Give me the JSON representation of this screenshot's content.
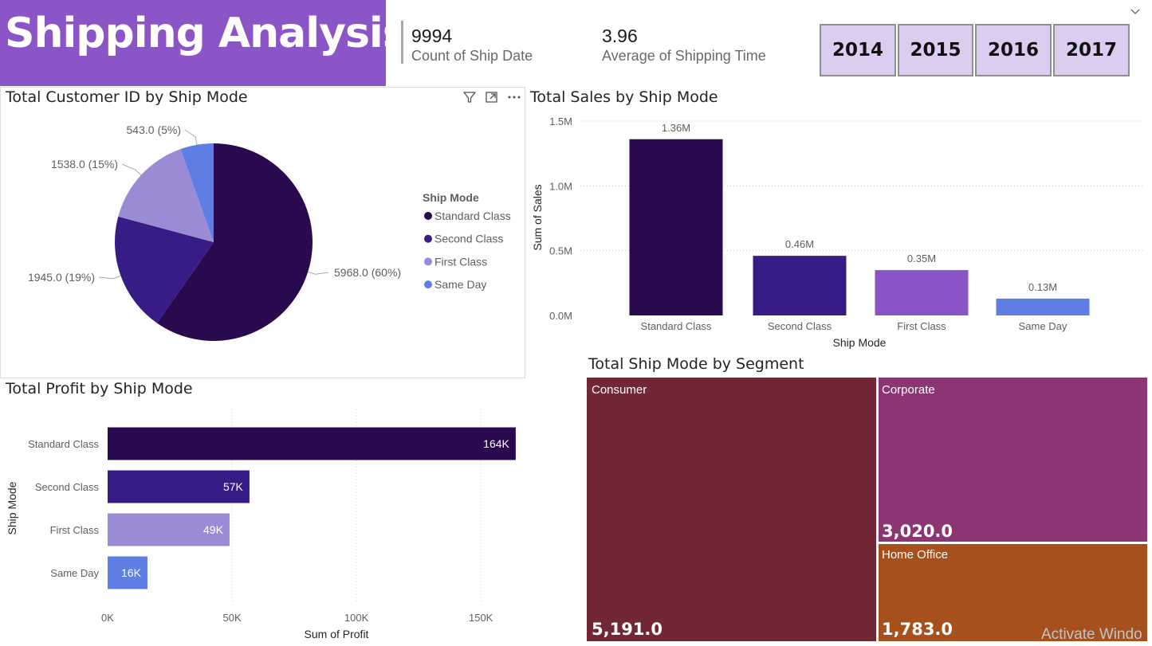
{
  "page": {
    "title": "Shipping Analysis",
    "watermark": "Activate Windo"
  },
  "kpis": [
    {
      "value": "9994",
      "label": "Count of Ship Date"
    },
    {
      "value": "3.96",
      "label": "Average of Shipping Time"
    }
  ],
  "year_slicer": [
    "2014",
    "2015",
    "2016",
    "2017"
  ],
  "colors": {
    "banner": "#8b55c8",
    "standard_class": "#2a0a4e",
    "second_class": "#371c86",
    "first_class_pie": "#9a8bd4",
    "first_class_bar": "#8b55c8",
    "same_day": "#5f7ee3",
    "consumer": "#722834",
    "corporate": "#8c3573",
    "home_office": "#a6501d"
  },
  "icons": [
    "filter-icon",
    "focus-mode-icon",
    "more-options-icon",
    "chevron-down-icon"
  ],
  "chart_data": [
    {
      "type": "pie",
      "title": "Total Customer ID by Ship Mode",
      "legend_title": "Ship Mode",
      "legend_position": "right",
      "slices": [
        {
          "name": "Standard Class",
          "value": 5968,
          "label": "5968.0 (60%)"
        },
        {
          "name": "Second Class",
          "value": 1945,
          "label": "1945.0 (19%)"
        },
        {
          "name": "First Class",
          "value": 1538,
          "label": "1538.0 (15%)"
        },
        {
          "name": "Same Day",
          "value": 543,
          "label": "543.0 (5%)"
        }
      ]
    },
    {
      "type": "bar",
      "title": "Total Sales by Ship Mode",
      "xlabel": "Ship Mode",
      "ylabel": "Sum of Sales",
      "categories": [
        "Standard Class",
        "Second Class",
        "First Class",
        "Same Day"
      ],
      "values": [
        1360000,
        460000,
        350000,
        130000
      ],
      "data_labels": [
        "1.36M",
        "0.46M",
        "0.35M",
        "0.13M"
      ],
      "ylim": [
        0,
        1500000
      ],
      "yticks": [
        0,
        500000,
        1000000,
        1500000
      ],
      "ytick_labels": [
        "0.0M",
        "0.5M",
        "1.0M",
        "1.5M"
      ],
      "grid": true
    },
    {
      "type": "bar",
      "orientation": "horizontal",
      "title": "Total Profit by Ship Mode",
      "xlabel": "Sum of Profit",
      "ylabel": "Ship Mode",
      "categories": [
        "Standard Class",
        "Second Class",
        "First Class",
        "Same Day"
      ],
      "values": [
        164000,
        57000,
        49000,
        16000
      ],
      "data_labels": [
        "164K",
        "57K",
        "49K",
        "16K"
      ],
      "xlim": [
        0,
        165000
      ],
      "xticks": [
        0,
        50000,
        100000,
        150000
      ],
      "xtick_labels": [
        "0K",
        "50K",
        "100K",
        "150K"
      ],
      "grid": true
    },
    {
      "type": "treemap",
      "title": "Total Ship Mode by Segment",
      "items": [
        {
          "name": "Consumer",
          "value": 5191,
          "label": "5,191.0"
        },
        {
          "name": "Corporate",
          "value": 3020,
          "label": "3,020.0"
        },
        {
          "name": "Home Office",
          "value": 1783,
          "label": "1,783.0"
        }
      ]
    }
  ]
}
